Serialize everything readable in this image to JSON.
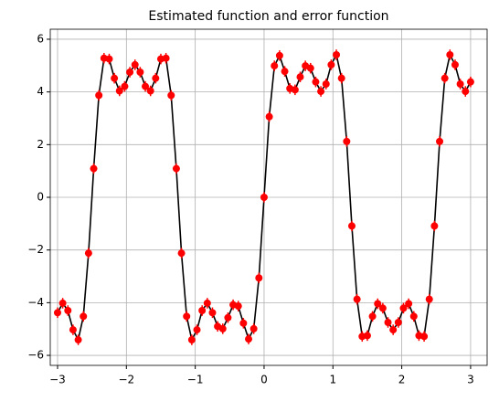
{
  "chart_data": {
    "type": "errorbar",
    "title": "Estimated function and error function",
    "x": [
      -3,
      -2.925,
      -2.85,
      -2.775,
      -2.7,
      -2.625,
      -2.55,
      -2.475,
      -2.4,
      -2.325,
      -2.25,
      -2.175,
      -2.1,
      -2.025,
      -1.95,
      -1.875,
      -1.8,
      -1.725,
      -1.65,
      -1.575,
      -1.5,
      -1.425,
      -1.35,
      -1.275,
      -1.2,
      -1.125,
      -1.05,
      -0.975,
      -0.9,
      -0.825,
      -0.75,
      -0.675,
      -0.6,
      -0.525,
      -0.45,
      -0.375,
      -0.3,
      -0.225,
      -0.15,
      -0.075,
      0,
      0.075,
      0.15,
      0.225,
      0.3,
      0.375,
      0.45,
      0.525,
      0.6,
      0.675,
      0.75,
      0.825,
      0.9,
      0.975,
      1.05,
      1.125,
      1.2,
      1.275,
      1.35,
      1.425,
      1.5,
      1.575,
      1.65,
      1.725,
      1.8,
      1.875,
      1.95,
      2.025,
      2.1,
      2.175,
      2.25,
      2.325,
      2.4,
      2.475,
      2.55,
      2.625,
      2.7,
      2.775,
      2.85,
      2.925,
      3
    ],
    "series": [
      {
        "color": "#ff0000",
        "line_color": "#000000",
        "error": 0.2,
        "values": [
          -4.38,
          -4.02,
          -4.3,
          -5.03,
          -5.41,
          -4.52,
          -2.12,
          1.09,
          3.87,
          5.28,
          5.25,
          4.52,
          4.04,
          4.21,
          4.75,
          5.03,
          4.75,
          4.21,
          4.04,
          4.52,
          5.25,
          5.28,
          3.87,
          1.09,
          -2.12,
          -4.52,
          -5.41,
          -5.03,
          -4.3,
          -4.02,
          -4.38,
          -4.9,
          -4.99,
          -4.57,
          -4.08,
          -4.13,
          -4.78,
          -5.38,
          -4.99,
          -3.06,
          0,
          3.06,
          4.99,
          5.38,
          4.78,
          4.13,
          4.08,
          4.57,
          4.99,
          4.9,
          4.38,
          4.02,
          4.3,
          5.03,
          5.41,
          4.52,
          2.12,
          -1.09,
          -3.87,
          -5.28,
          -5.25,
          -4.52,
          -4.04,
          -4.21,
          -4.75,
          -5.03,
          -4.75,
          -4.21,
          -4.04,
          -4.52,
          -5.25,
          -5.28,
          -3.87,
          -1.09,
          2.12,
          4.52,
          5.41,
          5.03,
          4.3,
          4.02,
          4.38
        ]
      }
    ],
    "xlim": [
      -3.106,
      3.24
    ],
    "ylim": [
      -6.38,
      6.38
    ],
    "xticks": [
      {
        "value": -3,
        "label": "−3"
      },
      {
        "value": -2,
        "label": "−2"
      },
      {
        "value": -1,
        "label": "−1"
      },
      0,
      1,
      2,
      3
    ],
    "yticks": [
      {
        "value": -6,
        "label": "−6"
      },
      {
        "value": -4,
        "label": "−4"
      },
      {
        "value": -2,
        "label": "−2"
      },
      0,
      2,
      4,
      6
    ],
    "grid": true
  }
}
